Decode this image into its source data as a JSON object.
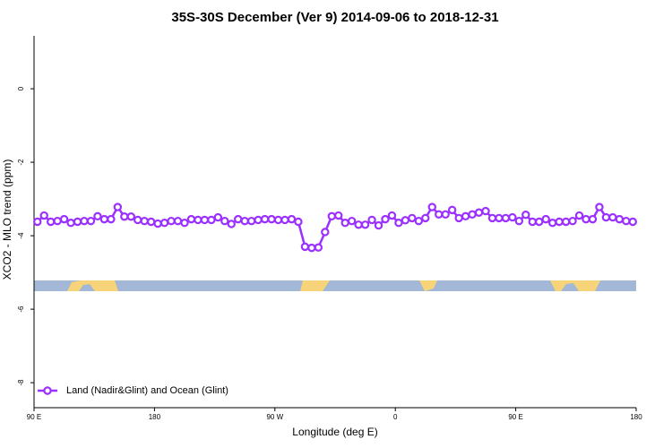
{
  "chart_data": {
    "type": "line",
    "title": "35S-30S December (Ver 9)   2014-09-06 to 2018-12-31",
    "x_label": "Longitude (deg E)",
    "y_label": "XCO2 - MLO trend (ppm)",
    "x": [
      92.5,
      97.5,
      102.5,
      107.5,
      112.5,
      117.5,
      122.5,
      127.5,
      132.5,
      137.5,
      142.5,
      147.5,
      152.5,
      157.5,
      162.5,
      167.5,
      172.5,
      177.5,
      182.5,
      187.5,
      192.5,
      197.5,
      202.5,
      207.5,
      212.5,
      217.5,
      222.5,
      227.5,
      232.5,
      237.5,
      242.5,
      247.5,
      252.5,
      257.5,
      262.5,
      267.5,
      272.5,
      277.5,
      282.5,
      287.5,
      292.5,
      297.5,
      302.5,
      307.5,
      312.5,
      317.5,
      322.5,
      327.5,
      332.5,
      337.5,
      342.5,
      347.5,
      352.5,
      357.5,
      362.5,
      367.5,
      372.5,
      377.5,
      382.5,
      387.5,
      392.5,
      397.5,
      402.5,
      407.5,
      412.5,
      417.5,
      422.5,
      427.5,
      432.5,
      437.5,
      442.5,
      447.5,
      452.5,
      457.5,
      462.5,
      467.5,
      472.5,
      477.5,
      482.5,
      487.5,
      492.5,
      497.5,
      502.5,
      507.5,
      512.5,
      517.5,
      522.5,
      527.5,
      532.5,
      537.5
    ],
    "series": [
      {
        "name": "Land (Nadir&Glint) and Ocean (Glint)",
        "color": "#9b30ff",
        "values": [
          -3.62,
          -3.45,
          -3.62,
          -3.6,
          -3.55,
          -3.65,
          -3.62,
          -3.6,
          -3.6,
          -3.47,
          -3.55,
          -3.55,
          -3.22,
          -3.48,
          -3.48,
          -3.57,
          -3.6,
          -3.62,
          -3.67,
          -3.65,
          -3.6,
          -3.6,
          -3.65,
          -3.55,
          -3.57,
          -3.57,
          -3.57,
          -3.5,
          -3.6,
          -3.68,
          -3.55,
          -3.6,
          -3.6,
          -3.57,
          -3.55,
          -3.55,
          -3.57,
          -3.57,
          -3.55,
          -3.62,
          -4.3,
          -4.33,
          -4.32,
          -3.9,
          -3.47,
          -3.45,
          -3.65,
          -3.6,
          -3.7,
          -3.7,
          -3.57,
          -3.72,
          -3.55,
          -3.45,
          -3.65,
          -3.58,
          -3.52,
          -3.6,
          -3.52,
          -3.22,
          -3.42,
          -3.42,
          -3.3,
          -3.52,
          -3.47,
          -3.42,
          -3.37,
          -3.33,
          -3.52,
          -3.52,
          -3.52,
          -3.5,
          -3.6,
          -3.43,
          -3.62,
          -3.62,
          -3.55,
          -3.65,
          -3.62,
          -3.62,
          -3.6,
          -3.45,
          -3.55,
          -3.55,
          -3.22,
          -3.5,
          -3.5,
          -3.55,
          -3.6,
          -3.62
        ]
      }
    ],
    "xlim": [
      90,
      540
    ],
    "xticks": [
      {
        "value": 90,
        "label": "90 E"
      },
      180,
      {
        "value": 270,
        "label": "90 W"
      },
      {
        "value": 360,
        "label": "0"
      },
      {
        "value": 450,
        "label": "90 E"
      },
      {
        "value": 540,
        "label": "180"
      }
    ],
    "ylim": [
      -8.68,
      1.44
    ],
    "yticks": [
      0,
      -2,
      -4,
      -6,
      -8
    ],
    "legend": "bottom-left"
  }
}
